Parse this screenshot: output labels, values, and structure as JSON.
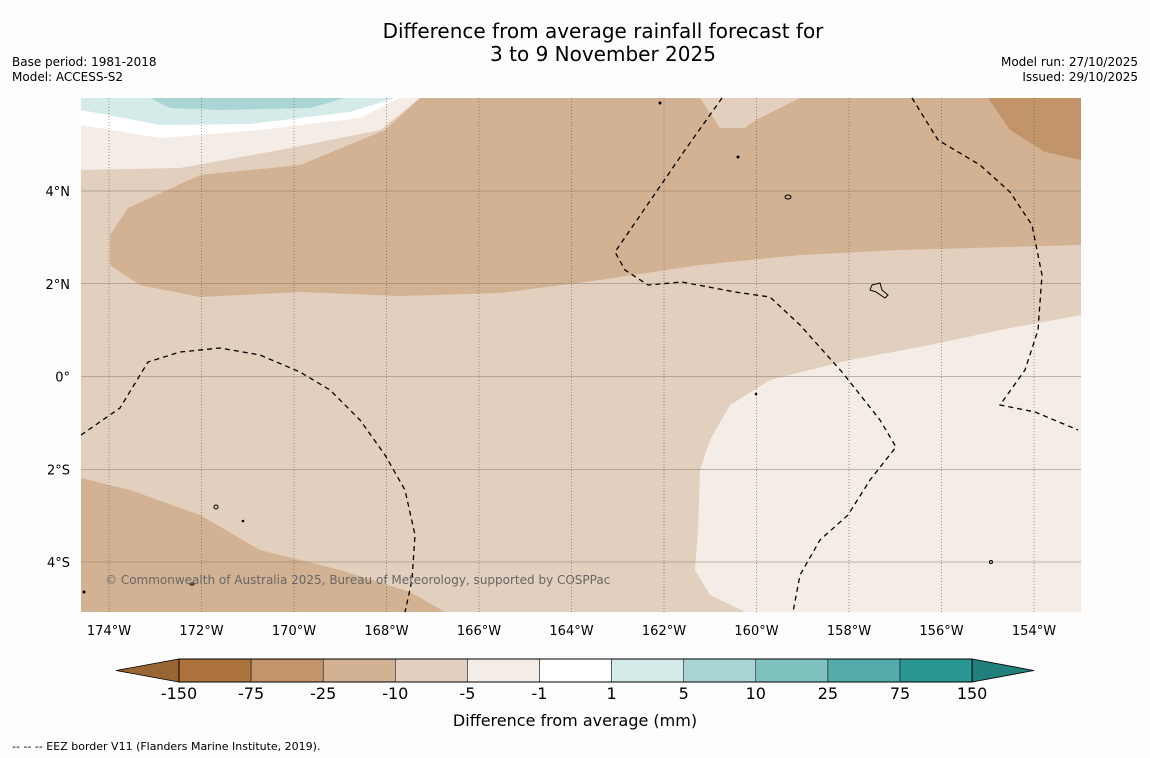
{
  "header": {
    "title_line1": "Difference from average rainfall forecast for",
    "title_line2": "3 to 9 November 2025",
    "base_period": "Base period: 1981-2018",
    "model": "Model: ACCESS-S2",
    "model_run": "Model run: 27/10/2025",
    "issued": "Issued: 29/10/2025"
  },
  "map": {
    "lat_labels": [
      "4°N",
      "2°N",
      "0°",
      "2°S",
      "4°S"
    ],
    "lon_labels": [
      "174°W",
      "172°W",
      "170°W",
      "168°W",
      "166°W",
      "164°W",
      "162°W",
      "160°W",
      "158°W",
      "156°W",
      "154°W"
    ],
    "copyright": "© Commonwealth of Australia 2025, Bureau of Meteorology, supported by COSPPac",
    "eez_legend": "--  --  -- EEZ border V11 (Flanders Marine Institute, 2019)."
  },
  "colorbar": {
    "ticks": [
      "-150",
      "-75",
      "-25",
      "-10",
      "-5",
      "-1",
      "1",
      "5",
      "10",
      "25",
      "75",
      "150"
    ],
    "colors": [
      "#ad733d",
      "#c29469",
      "#d2b293",
      "#e3cfbd",
      "#f4ece6",
      "#ffffff",
      "#d4ebea",
      "#a9d5d5",
      "#7fc1bf",
      "#55abaa",
      "#2b9793"
    ],
    "under_color": "#9a6535",
    "over_color": "#21807c",
    "label": "Difference from average (mm)"
  }
}
